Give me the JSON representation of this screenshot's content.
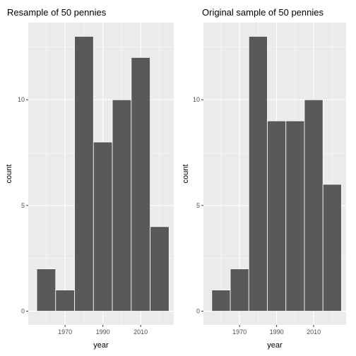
{
  "style": {
    "panel_background": "#ebebeb",
    "grid_major": "#ffffff",
    "bar_fill": "#595959",
    "bar_outline": "#ffffff",
    "tick_color": "#333333"
  },
  "chart_data": [
    {
      "type": "bar",
      "title": "Resample of 50 pennies",
      "xlabel": "year",
      "ylabel": "count",
      "bin_width": 10,
      "bin_centers": [
        1960,
        1970,
        1980,
        1990,
        2000,
        2010,
        2020
      ],
      "values": [
        2,
        1,
        13,
        8,
        10,
        12,
        4
      ],
      "xlim": [
        1950.5,
        2027.5
      ],
      "ylim": [
        -0.65,
        13.65
      ],
      "x_ticks": [
        1970,
        1990,
        2010
      ],
      "x_tick_labels": [
        "1970",
        "1990",
        "2010"
      ],
      "y_ticks": [
        0,
        5,
        10
      ],
      "y_tick_labels": [
        "0",
        "5",
        "10"
      ],
      "grid": true,
      "legend": "none"
    },
    {
      "type": "bar",
      "title": "Original sample of 50 pennies",
      "xlabel": "year",
      "ylabel": "count",
      "bin_width": 10,
      "bin_centers": [
        1960,
        1970,
        1980,
        1990,
        2000,
        2010,
        2020
      ],
      "values": [
        1,
        2,
        13,
        9,
        9,
        10,
        6
      ],
      "xlim": [
        1950.5,
        2027.5
      ],
      "ylim": [
        -0.65,
        13.65
      ],
      "x_ticks": [
        1970,
        1990,
        2010
      ],
      "x_tick_labels": [
        "1970",
        "1990",
        "2010"
      ],
      "y_ticks": [
        0,
        5,
        10
      ],
      "y_tick_labels": [
        "0",
        "5",
        "10"
      ],
      "grid": true,
      "legend": "none"
    }
  ]
}
